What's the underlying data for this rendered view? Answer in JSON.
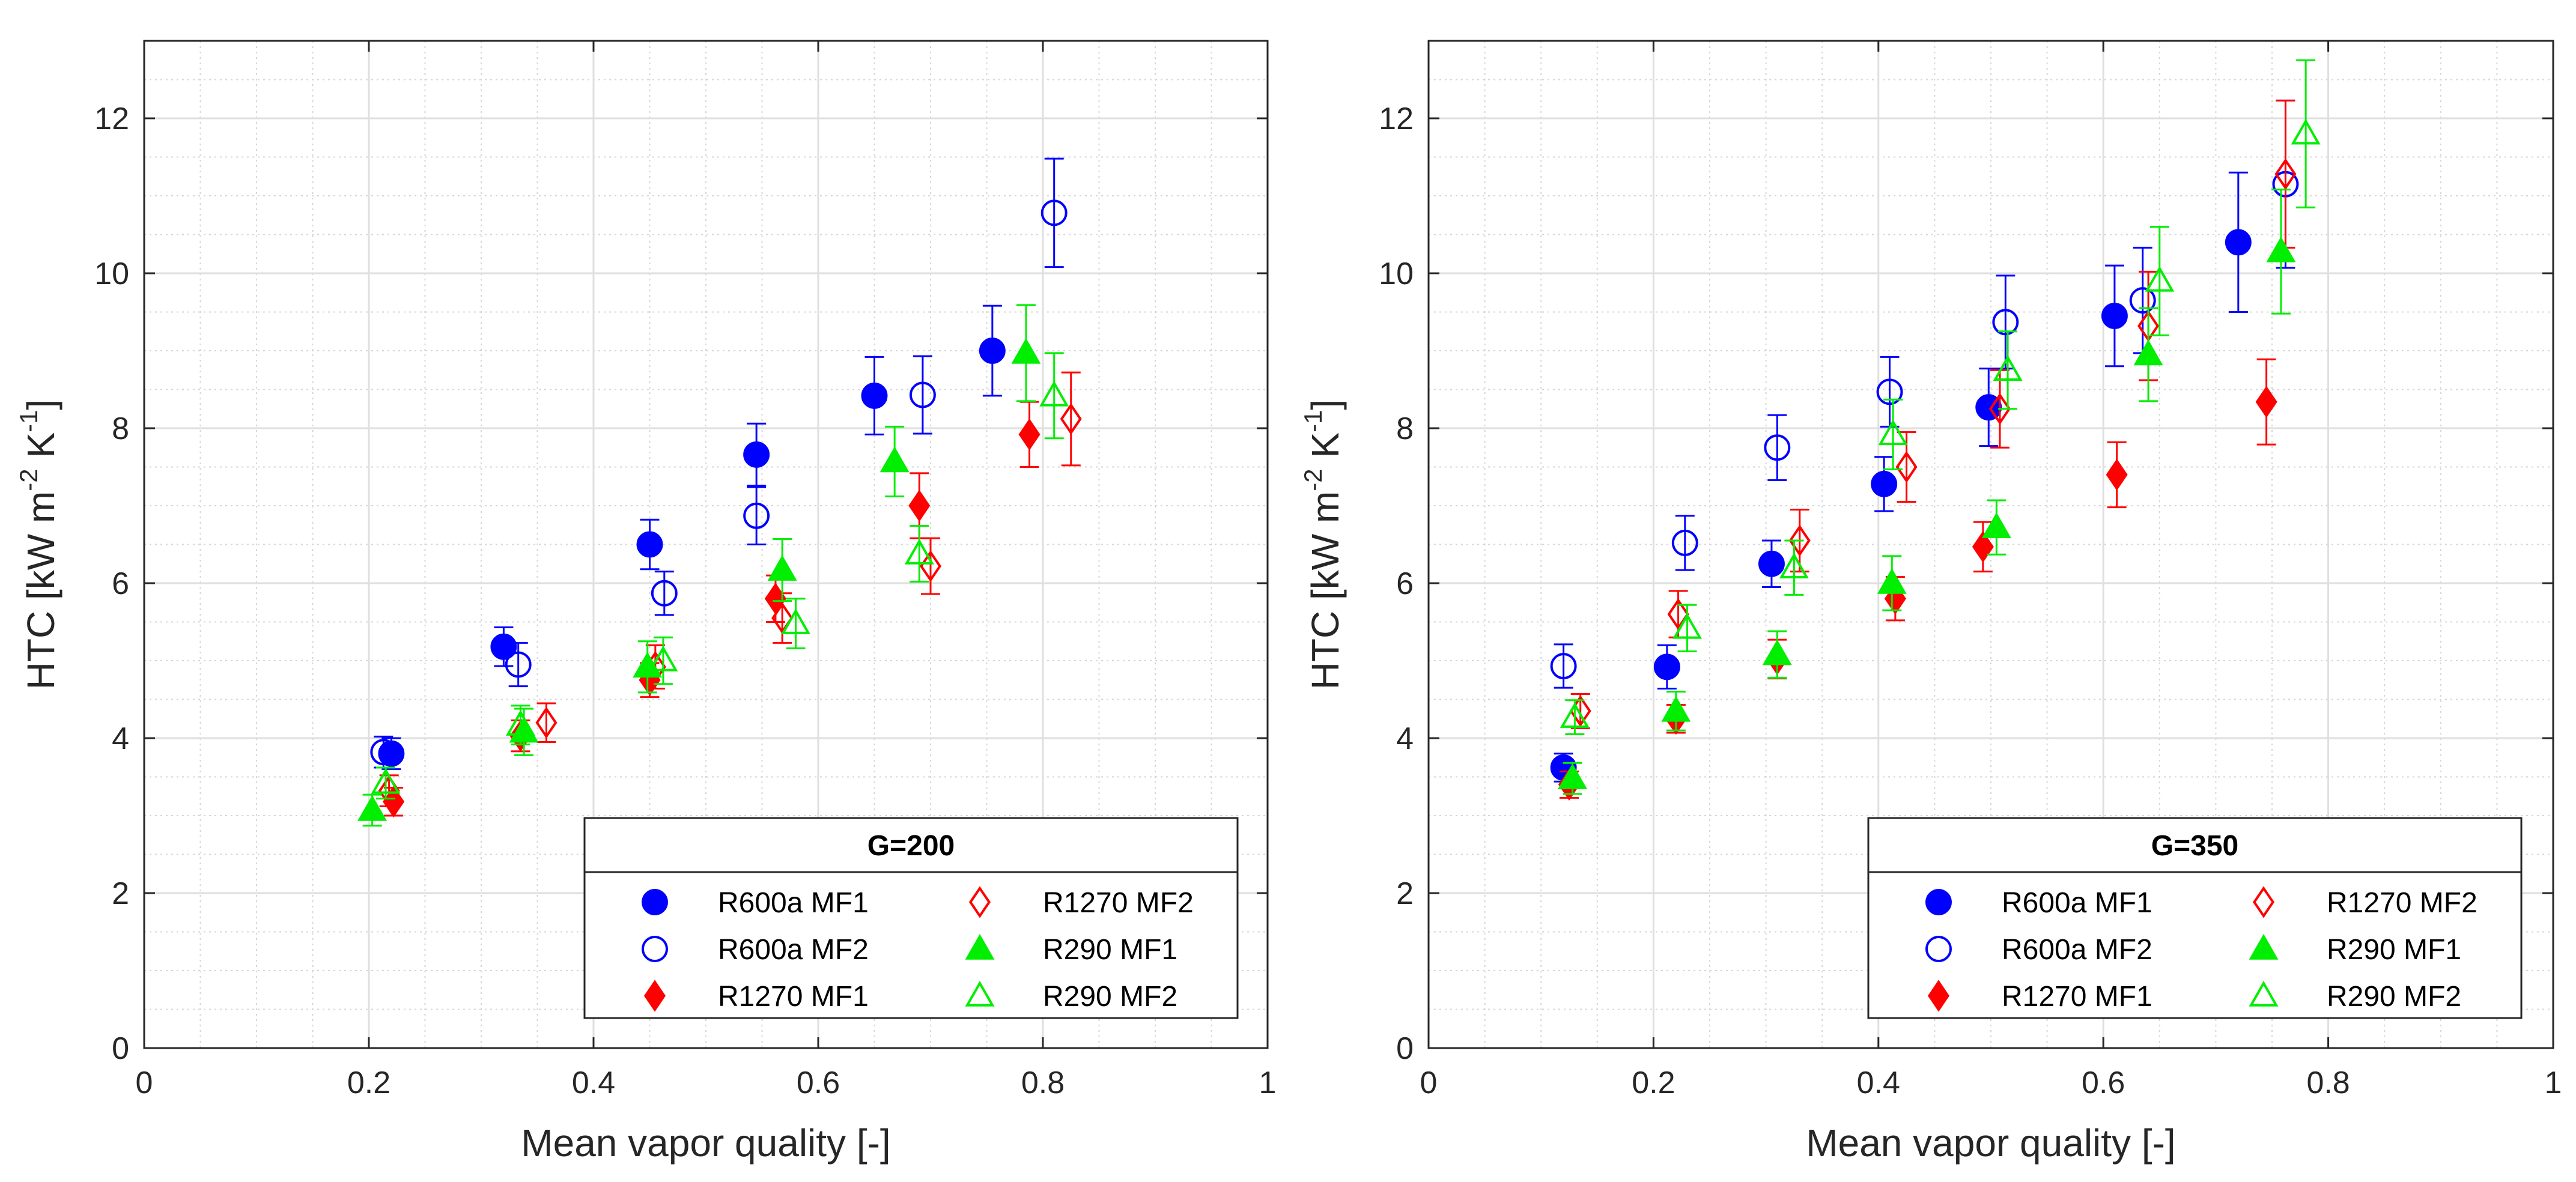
{
  "chart_data": [
    {
      "type": "scatter",
      "title": "",
      "legend_title": "G=200",
      "legend_position": "bottom-right",
      "xlabel": "Mean vapor quality [-]",
      "ylabel": "HTC [kW m",
      "ylabel_parts": [
        "HTC [kW m",
        "-2",
        " K",
        "-1",
        "]"
      ],
      "xlim": [
        0,
        1
      ],
      "ylim": [
        0,
        13
      ],
      "xticks": [
        0,
        0.2,
        0.4,
        0.6,
        0.8,
        1
      ],
      "xtick_labels": [
        "0",
        "0.2",
        "0.4",
        "0.6",
        "0.8",
        "1"
      ],
      "yticks": [
        0,
        2,
        4,
        6,
        8,
        10,
        12
      ],
      "ytick_labels": [
        "0",
        "2",
        "4",
        "6",
        "8",
        "10",
        "12"
      ],
      "grid": true,
      "series": [
        {
          "name": "R600a MF1",
          "marker": "circle",
          "filled": true,
          "color": "#0000ff",
          "x": [
            0.22,
            0.32,
            0.45,
            0.545,
            0.65,
            0.755
          ],
          "y": [
            3.8,
            5.18,
            6.5,
            7.66,
            8.42,
            9.0
          ],
          "err": [
            0.2,
            0.25,
            0.32,
            0.4,
            0.5,
            0.58
          ]
        },
        {
          "name": "R600a MF2",
          "marker": "circle",
          "filled": false,
          "color": "#0000ff",
          "x": [
            0.213,
            0.333,
            0.463,
            0.545,
            0.693,
            0.81
          ],
          "y": [
            3.82,
            4.95,
            5.87,
            6.87,
            8.43,
            10.78
          ],
          "err": [
            0.2,
            0.28,
            0.28,
            0.37,
            0.5,
            0.7
          ]
        },
        {
          "name": "R1270 MF1",
          "marker": "diamond",
          "filled": true,
          "color": "#ff0000",
          "x": [
            0.222,
            0.335,
            0.45,
            0.562,
            0.69,
            0.788
          ],
          "y": [
            3.18,
            4.03,
            4.75,
            5.8,
            7.0,
            7.92
          ],
          "err": [
            0.18,
            0.2,
            0.22,
            0.3,
            0.42,
            0.42
          ]
        },
        {
          "name": "R1270 MF2",
          "marker": "diamond",
          "filled": false,
          "color": "#ff0000",
          "x": [
            0.218,
            0.358,
            0.455,
            0.568,
            0.7,
            0.825
          ],
          "y": [
            3.32,
            4.2,
            4.92,
            5.55,
            6.22,
            8.12
          ],
          "err": [
            0.2,
            0.25,
            0.28,
            0.32,
            0.36,
            0.6
          ]
        },
        {
          "name": "R290 MF1",
          "marker": "triangle",
          "filled": true,
          "color": "#00ee00",
          "x": [
            0.203,
            0.338,
            0.448,
            0.568,
            0.668,
            0.785
          ],
          "y": [
            3.07,
            4.08,
            4.92,
            6.17,
            7.57,
            8.97
          ],
          "err": [
            0.2,
            0.3,
            0.33,
            0.4,
            0.45,
            0.62
          ]
        },
        {
          "name": "R290 MF2",
          "marker": "triangle",
          "filled": false,
          "color": "#00ee00",
          "x": [
            0.215,
            0.335,
            0.462,
            0.58,
            0.69,
            0.81
          ],
          "y": [
            3.42,
            4.17,
            5.0,
            5.48,
            6.38,
            8.42
          ],
          "err": [
            0.2,
            0.25,
            0.3,
            0.32,
            0.36,
            0.55
          ]
        }
      ]
    },
    {
      "type": "scatter",
      "title": "",
      "legend_title": "G=350",
      "legend_position": "bottom-right",
      "xlabel": "Mean vapor quality [-]",
      "ylabel": "HTC [kW m",
      "ylabel_parts": [
        "HTC [kW m",
        "-2",
        " K",
        "-1",
        "]"
      ],
      "xlim": [
        0,
        1
      ],
      "ylim": [
        0,
        13
      ],
      "xticks": [
        0,
        0.2,
        0.4,
        0.6,
        0.8,
        1
      ],
      "xtick_labels": [
        "0",
        "0.2",
        "0.4",
        "0.6",
        "0.8",
        "1"
      ],
      "yticks": [
        0,
        2,
        4,
        6,
        8,
        10,
        12
      ],
      "ytick_labels": [
        "0",
        "2",
        "4",
        "6",
        "8",
        "10",
        "12"
      ],
      "grid": true,
      "series": [
        {
          "name": "R600a MF1",
          "marker": "circle",
          "filled": true,
          "color": "#0000ff",
          "x": [
            0.12,
            0.212,
            0.305,
            0.405,
            0.498,
            0.61,
            0.72
          ],
          "y": [
            3.62,
            4.92,
            6.25,
            7.28,
            8.27,
            9.45,
            10.4
          ],
          "err": [
            0.18,
            0.28,
            0.3,
            0.35,
            0.5,
            0.65,
            0.9
          ]
        },
        {
          "name": "R600a MF2",
          "marker": "circle",
          "filled": false,
          "color": "#0000ff",
          "x": [
            0.12,
            0.228,
            0.31,
            0.41,
            0.513,
            0.635,
            0.762
          ],
          "y": [
            4.93,
            6.52,
            7.75,
            8.47,
            9.37,
            9.65,
            11.15
          ],
          "err": [
            0.28,
            0.35,
            0.42,
            0.45,
            0.6,
            0.68,
            1.08
          ]
        },
        {
          "name": "R1270 MF1",
          "marker": "diamond",
          "filled": true,
          "color": "#ff0000",
          "x": [
            0.125,
            0.22,
            0.31,
            0.415,
            0.493,
            0.612,
            0.745
          ],
          "y": [
            3.4,
            4.25,
            5.02,
            5.8,
            6.47,
            7.4,
            8.34
          ],
          "err": [
            0.17,
            0.18,
            0.25,
            0.28,
            0.32,
            0.42,
            0.55
          ]
        },
        {
          "name": "R1270 MF2",
          "marker": "diamond",
          "filled": false,
          "color": "#ff0000",
          "x": [
            0.135,
            0.222,
            0.33,
            0.425,
            0.508,
            0.64,
            0.762
          ],
          "y": [
            4.35,
            5.6,
            6.55,
            7.5,
            8.25,
            9.32,
            11.28
          ],
          "err": [
            0.22,
            0.3,
            0.4,
            0.45,
            0.5,
            0.7,
            0.95
          ]
        },
        {
          "name": "R290 MF1",
          "marker": "triangle",
          "filled": true,
          "color": "#00ee00",
          "x": [
            0.128,
            0.22,
            0.31,
            0.412,
            0.505,
            0.64,
            0.758
          ],
          "y": [
            3.48,
            4.35,
            5.08,
            6.0,
            6.72,
            8.95,
            10.28
          ],
          "err": [
            0.2,
            0.25,
            0.3,
            0.35,
            0.35,
            0.6,
            0.8
          ]
        },
        {
          "name": "R290 MF2",
          "marker": "triangle",
          "filled": false,
          "color": "#00ee00",
          "x": [
            0.13,
            0.23,
            0.325,
            0.413,
            0.515,
            0.65,
            0.78
          ],
          "y": [
            4.27,
            5.42,
            6.2,
            7.92,
            8.75,
            9.9,
            11.8
          ],
          "err": [
            0.22,
            0.3,
            0.35,
            0.45,
            0.5,
            0.7,
            0.95
          ]
        }
      ]
    }
  ]
}
